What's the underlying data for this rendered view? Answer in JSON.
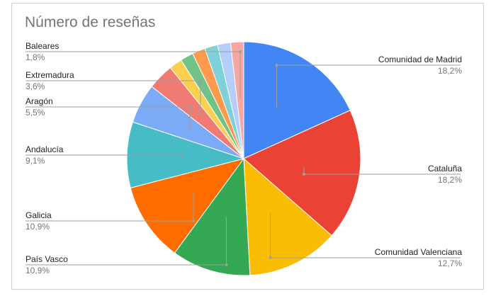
{
  "chart_data": {
    "type": "pie",
    "title": "Número de reseñas",
    "slices": [
      {
        "label": "Comunidad de Madrid",
        "value": 18.2,
        "percent_label": "18,2%",
        "color": "#4285F4"
      },
      {
        "label": "Cataluña",
        "value": 18.2,
        "percent_label": "18,2%",
        "color": "#EA4335"
      },
      {
        "label": "Comunidad Valenciana",
        "value": 12.7,
        "percent_label": "12,7%",
        "color": "#FBBC04"
      },
      {
        "label": "País Vasco",
        "value": 10.9,
        "percent_label": "10,9%",
        "color": "#34A853"
      },
      {
        "label": "Galicia",
        "value": 10.9,
        "percent_label": "10,9%",
        "color": "#FF6D01"
      },
      {
        "label": "Andalucía",
        "value": 9.1,
        "percent_label": "9,1%",
        "color": "#46BDC6"
      },
      {
        "label": "Aragón",
        "value": 5.5,
        "percent_label": "5,5%",
        "color": "#7BAAF7"
      },
      {
        "label": "Extremadura",
        "value": 3.6,
        "percent_label": "3,6%",
        "color": "#F07B72"
      },
      {
        "label": "",
        "value": 1.8,
        "percent_label": "",
        "color": "#FCD04F"
      },
      {
        "label": "",
        "value": 1.8,
        "percent_label": "",
        "color": "#71C287"
      },
      {
        "label": "",
        "value": 1.8,
        "percent_label": "",
        "color": "#FF994D"
      },
      {
        "label": "",
        "value": 1.8,
        "percent_label": "",
        "color": "#7ED1D7"
      },
      {
        "label": "",
        "value": 1.8,
        "percent_label": "",
        "color": "#B3CEFB"
      },
      {
        "label": "Baleares",
        "value": 1.8,
        "percent_label": "1,8%",
        "color": "#F7A7A1"
      }
    ]
  }
}
